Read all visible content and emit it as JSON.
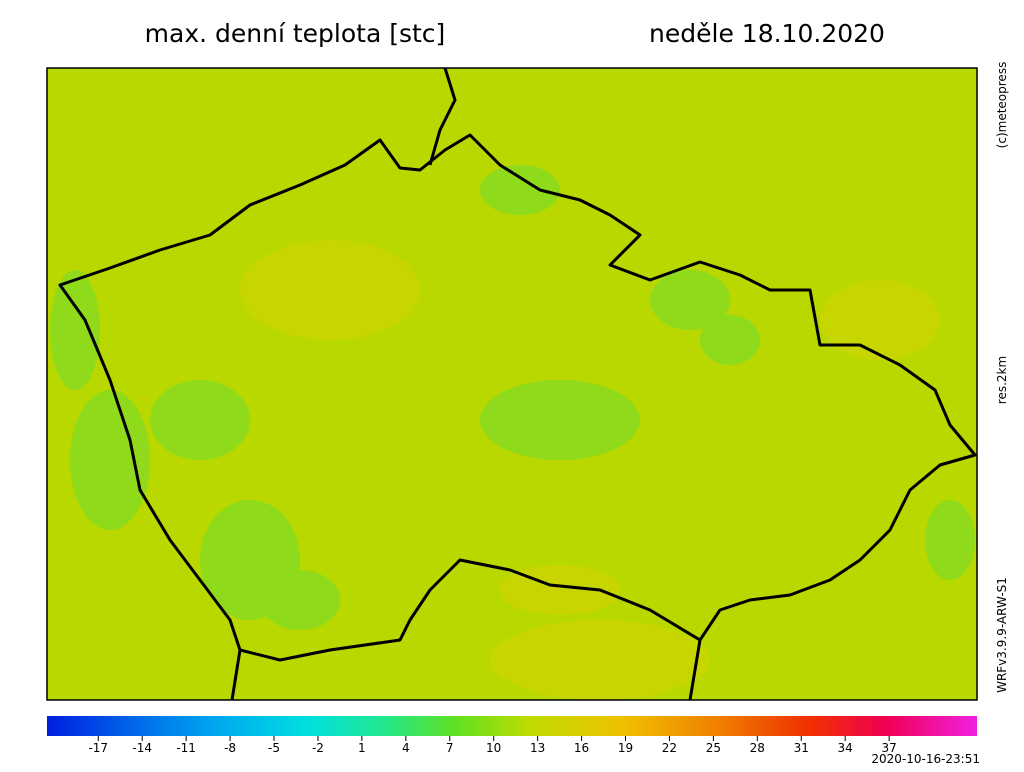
{
  "header": {
    "title": "max. denní teplota [stc]",
    "date": "neděle 18.10.2020"
  },
  "side_labels": {
    "copyright": "(c)meteopress",
    "resolution": "res.2km",
    "model": "WRFv3.9.9-ARW-S1"
  },
  "colorbar": {
    "lim": [
      -20.5,
      43
    ],
    "ticks": [
      -17,
      -14,
      -11,
      -8,
      -5,
      -2,
      1,
      4,
      7,
      10,
      13,
      16,
      19,
      22,
      25,
      28,
      31,
      34,
      37
    ]
  },
  "timestamp": "2020-10-16-23:51"
}
